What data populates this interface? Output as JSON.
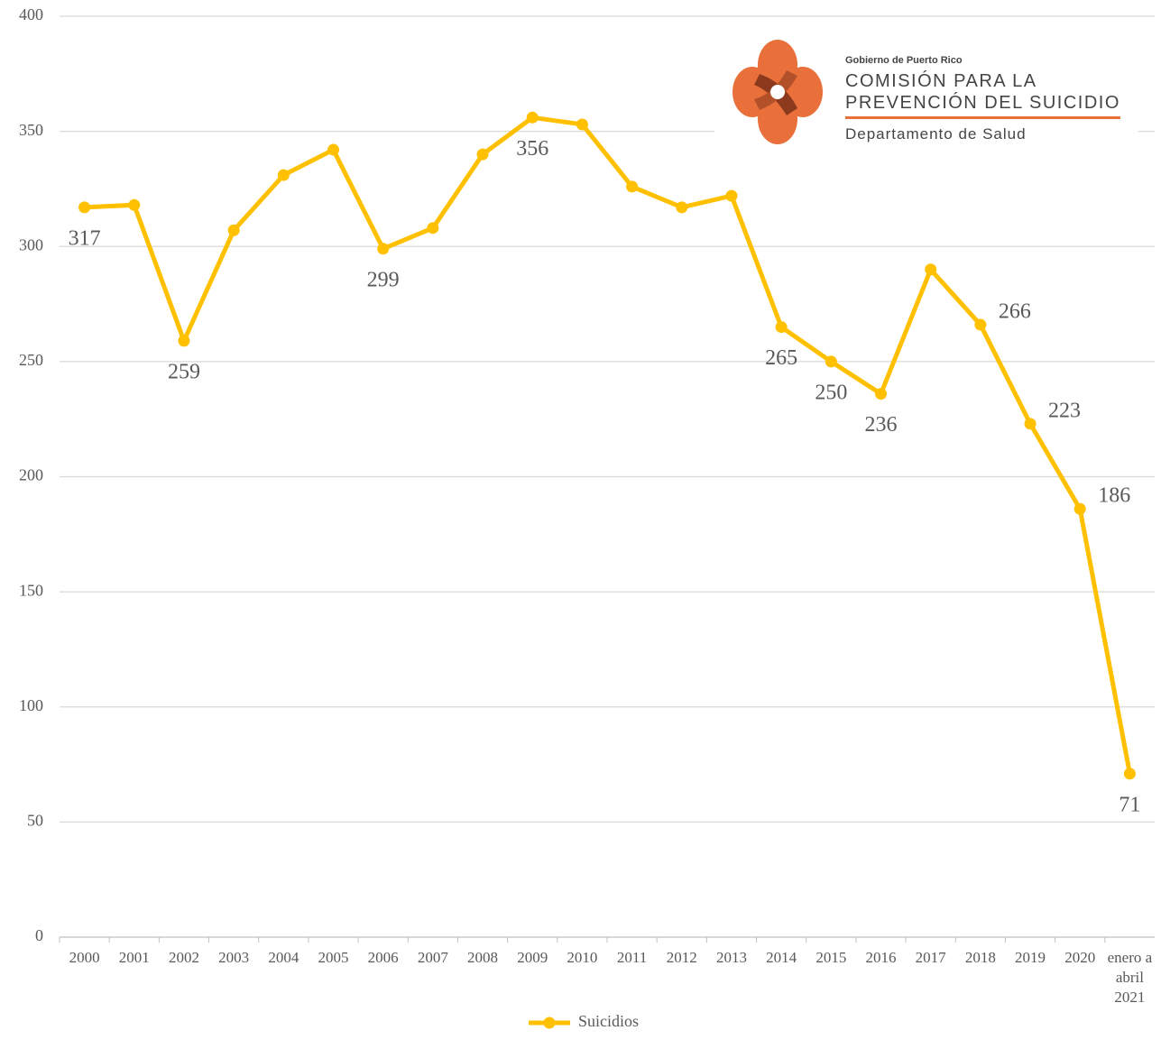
{
  "chart_data": {
    "type": "line",
    "categories": [
      "2000",
      "2001",
      "2002",
      "2003",
      "2004",
      "2005",
      "2006",
      "2007",
      "2008",
      "2009",
      "2010",
      "2011",
      "2012",
      "2013",
      "2014",
      "2015",
      "2016",
      "2017",
      "2018",
      "2019",
      "2020",
      "enero a abril 2021"
    ],
    "series": [
      {
        "name": "Suicidios",
        "color": "#ffc000",
        "values": [
          317,
          318,
          259,
          307,
          331,
          342,
          299,
          308,
          340,
          356,
          353,
          326,
          317,
          322,
          265,
          250,
          236,
          290,
          266,
          223,
          186,
          71
        ],
        "value_labels": [
          "317",
          null,
          "259",
          null,
          null,
          null,
          "299",
          null,
          null,
          "356",
          null,
          null,
          null,
          null,
          "265",
          "250",
          "236",
          null,
          "266",
          "223",
          "186",
          "71"
        ]
      }
    ],
    "ylim": [
      0,
      400
    ],
    "yticks": [
      0,
      50,
      100,
      150,
      200,
      250,
      300,
      350,
      400
    ],
    "grid": true,
    "legend": "bottom"
  },
  "logo": {
    "org": "Gobierno de Puerto Rico",
    "line1": "COMISIÓN PARA LA",
    "line2": "PREVENCIÓN DEL SUICIDIO",
    "dept": "Departamento de Salud"
  }
}
